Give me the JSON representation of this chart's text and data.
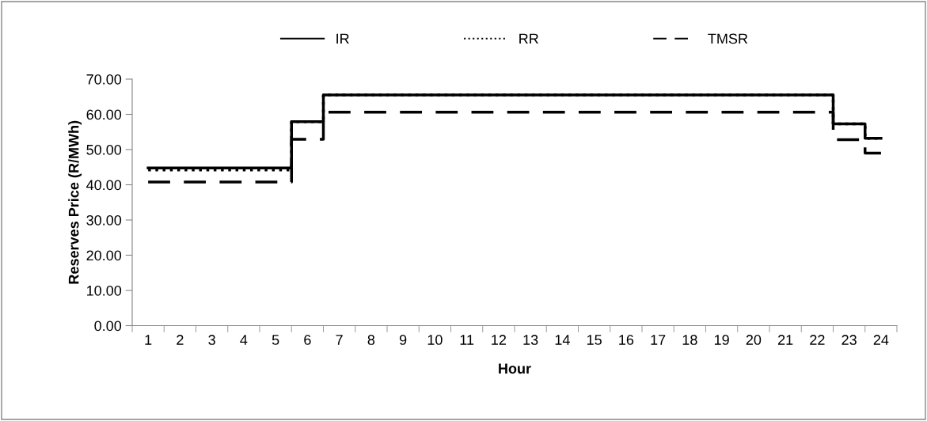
{
  "chart_data": {
    "type": "step",
    "xlabel": "Hour",
    "ylabel": "Reserves Price (R/MWh)",
    "categories": [
      "1",
      "2",
      "3",
      "4",
      "5",
      "6",
      "7",
      "8",
      "9",
      "10",
      "11",
      "12",
      "13",
      "14",
      "15",
      "16",
      "17",
      "18",
      "19",
      "20",
      "21",
      "22",
      "23",
      "24"
    ],
    "series": [
      {
        "name": "IR",
        "color": "#000000",
        "line_style": "solid",
        "values": [
          44.8,
          44.8,
          44.8,
          44.8,
          44.8,
          57.9,
          65.5,
          65.5,
          65.5,
          65.5,
          65.5,
          65.5,
          65.5,
          65.5,
          65.5,
          65.5,
          65.5,
          65.5,
          65.5,
          65.5,
          65.5,
          65.5,
          57.3,
          53.2
        ]
      },
      {
        "name": "RR",
        "color": "#000000",
        "line_style": "dotted",
        "values": [
          44.2,
          44.2,
          44.2,
          44.2,
          44.2,
          57.9,
          65.5,
          65.5,
          65.5,
          65.5,
          65.5,
          65.5,
          65.5,
          65.5,
          65.5,
          65.5,
          65.5,
          65.5,
          65.5,
          65.5,
          65.5,
          65.5,
          57.3,
          53.2
        ]
      },
      {
        "name": "TMSR",
        "color": "#000000",
        "line_style": "dashed",
        "values": [
          40.8,
          40.8,
          40.8,
          40.8,
          40.8,
          52.9,
          60.6,
          60.6,
          60.6,
          60.6,
          60.6,
          60.6,
          60.6,
          60.6,
          60.6,
          60.6,
          60.6,
          60.6,
          60.6,
          60.6,
          60.6,
          60.6,
          52.8,
          49.0
        ]
      }
    ],
    "ylim": [
      0,
      70
    ],
    "yticks": [
      {
        "value": 0,
        "label": "0.00"
      },
      {
        "value": 10,
        "label": "10.00"
      },
      {
        "value": 20,
        "label": "20.00"
      },
      {
        "value": 30,
        "label": "30.00"
      },
      {
        "value": 40,
        "label": "40.00"
      },
      {
        "value": 50,
        "label": "50.00"
      },
      {
        "value": 60,
        "label": "60.00"
      },
      {
        "value": 70,
        "label": "70.00"
      }
    ],
    "grid": false,
    "legend": "top"
  }
}
